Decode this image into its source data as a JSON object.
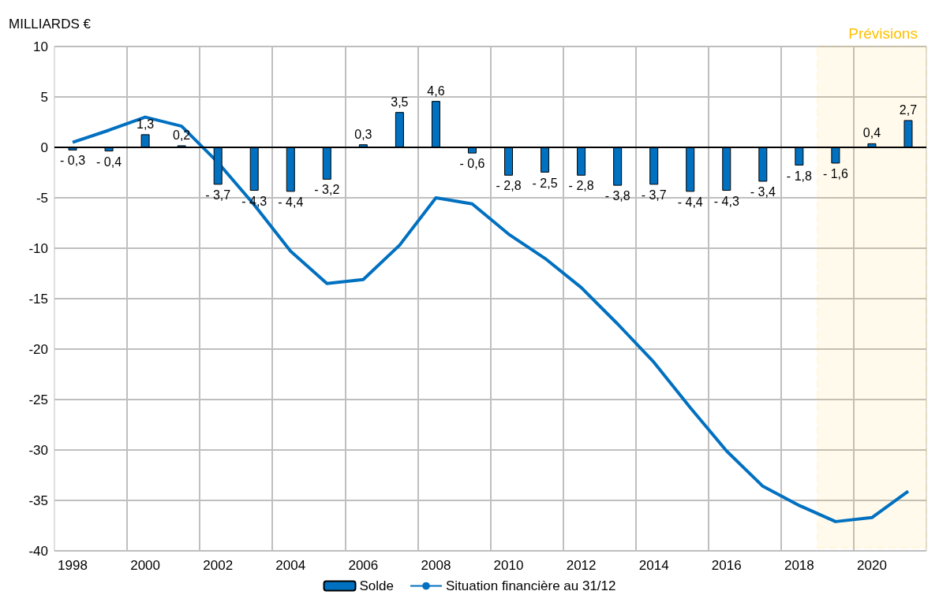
{
  "chart_data": {
    "type": "bar",
    "ylabel": "MILLIARDS €",
    "x": [
      1998,
      1999,
      2000,
      2001,
      2002,
      2003,
      2004,
      2005,
      2006,
      2007,
      2008,
      2009,
      2010,
      2011,
      2012,
      2013,
      2014,
      2015,
      2016,
      2017,
      2018,
      2019,
      2020,
      2021
    ],
    "xlim": [
      1997.5,
      2021.5
    ],
    "xticks": [
      1998,
      {
        "value": 1999.5,
        "label": null
      },
      2000,
      {
        "value": 2001.5,
        "label": null
      },
      2002,
      {
        "value": 2003.5,
        "label": null
      },
      2004,
      {
        "value": 2005.5,
        "label": null
      },
      2006,
      {
        "value": 2007.5,
        "label": null
      },
      2008,
      {
        "value": 2009.5,
        "label": null
      },
      2010,
      {
        "value": 2011.5,
        "label": null
      },
      2012,
      {
        "value": 2013.5,
        "label": null
      },
      2014,
      {
        "value": 2015.5,
        "label": null
      },
      2016,
      {
        "value": 2017.5,
        "label": null
      },
      2018,
      {
        "value": 2019.5,
        "label": null
      },
      2020
    ],
    "ylim": [
      -40,
      10
    ],
    "yticks": [
      -40,
      -35,
      -30,
      -25,
      -20,
      -15,
      -10,
      -5,
      0,
      5,
      10
    ],
    "series": [
      {
        "name": "Solde",
        "color": "#0070c0",
        "values": [
          -0.3,
          -0.4,
          1.3,
          0.2,
          -3.7,
          -4.3,
          -4.4,
          -3.2,
          0.3,
          3.5,
          4.6,
          -0.6,
          -2.8,
          -2.5,
          -2.8,
          -3.8,
          -3.7,
          -4.4,
          -4.3,
          -3.4,
          -1.8,
          -1.6,
          0.4,
          2.7
        ],
        "value_labels": [
          "- 0,3",
          "- 0,4",
          "1,3",
          "0,2",
          "- 3,7",
          "- 4,3",
          "- 4,4",
          "- 3,2",
          "0,3",
          "3,5",
          "4,6",
          "- 0,6",
          "- 2,8",
          "- 2,5",
          "- 2,8",
          "- 3,8",
          "- 3,7",
          "- 4,4",
          "- 4,3",
          "- 3,4",
          "- 1,8",
          "- 1,6",
          "0,4",
          "2,7"
        ]
      },
      {
        "name": "Situation financière au 31/12",
        "type": "line",
        "color": "#0070c0",
        "values": [
          0.5,
          1.7,
          3.0,
          2.1,
          -1.5,
          -5.7,
          -10.3,
          -13.5,
          -13.1,
          -9.7,
          -5.0,
          -5.6,
          -8.6,
          -11.0,
          -13.9,
          -17.5,
          -21.3,
          -25.8,
          -30.1,
          -33.6,
          -35.5,
          -37.1,
          -36.7,
          -34.1
        ]
      }
    ],
    "ref_lines": [
      {
        "axis": "y",
        "value": 0,
        "color": "#000000"
      }
    ],
    "bands": [
      {
        "axis": "x",
        "from": 2018.5,
        "to": 2021.5,
        "label": "Prévisions",
        "color": "#ffc000"
      }
    ],
    "grid": true,
    "legend": "bottom",
    "marker": "none"
  }
}
